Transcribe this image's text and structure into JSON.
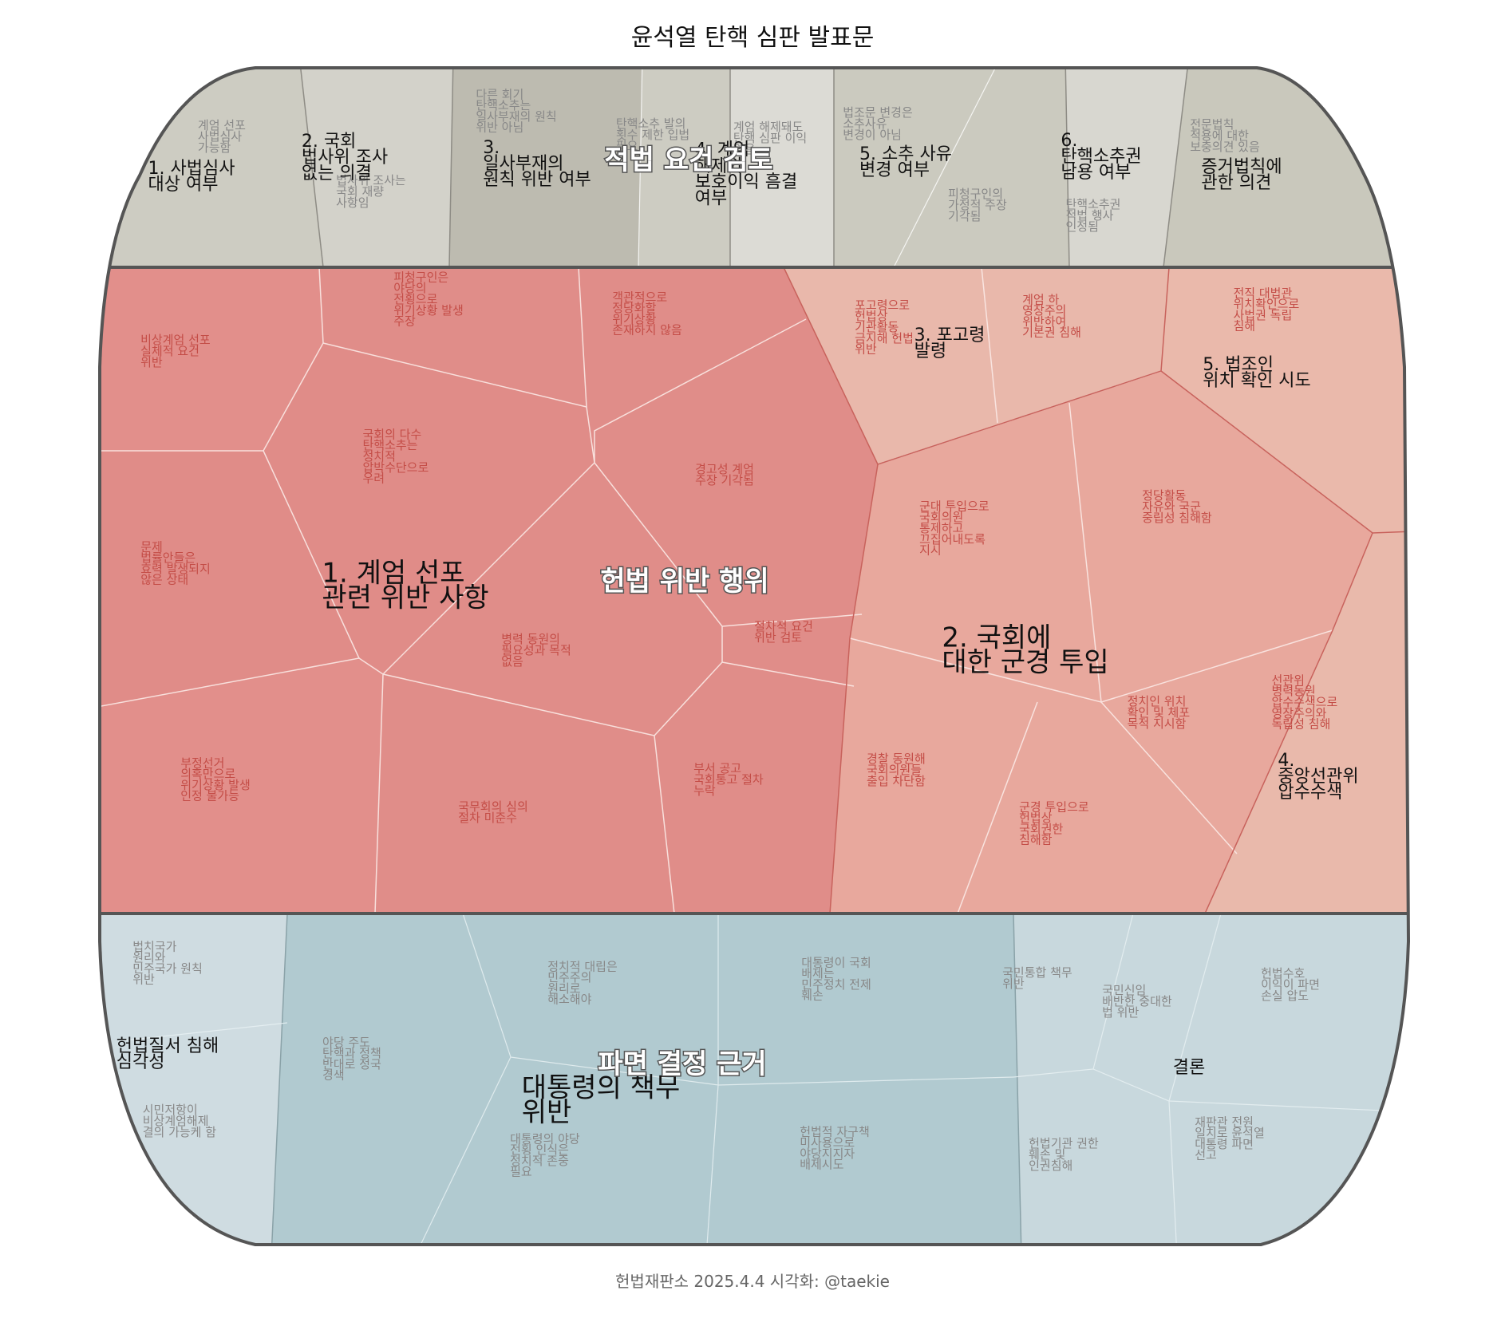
{
  "title": "윤석열 탄핵 심판 발표문",
  "footer": "헌법재판소 2025.4.4 시각화: @taekie",
  "groups": [
    {
      "label": "적법 요건 검토",
      "color": "#cdccc2",
      "cells": [
        {
          "label": "1. 사법심사\n대상 여부",
          "details": [
            "계엄 선포\n사법심사\n가능함"
          ]
        },
        {
          "label": "2. 국회\n법사위 조사\n없는 의결",
          "details": [
            "법사위 조사는\n국회 재량\n사항임"
          ]
        },
        {
          "label": "3.\n일사부재의\n원칙 위반 여부",
          "details": [
            "다른 회기\n탄핵소추는\n일사부재의 원칙\n위반 아님",
            "탄핵소추 발의\n횟수 제한 입법\n필요"
          ]
        },
        {
          "label": "4. 계엄\n해제와\n보호이익 흠결\n여부",
          "details": [
            "계엄 해제돼도\n탄핵 심판 이익\n있음"
          ]
        },
        {
          "label": "5. 소추 사유\n변경 여부",
          "details": [
            "법조문 변경은\n소추사유\n변경이 아님",
            "피청구인의\n가정적 주장\n기각됨"
          ]
        },
        {
          "label": "6.\n탄핵소추권\n남용 여부",
          "details": [
            "탄핵소추권\n적법 행사\n인정됨"
          ]
        },
        {
          "label": "증거법칙에\n관한 의견",
          "details": [
            "전문법칙\n적용에 대한\n보충의견 있음"
          ]
        }
      ]
    },
    {
      "label": "헌법 위반 행위",
      "color": "#e08d89",
      "cells": [
        {
          "label": "1. 계엄 선포\n관련 위반 사항",
          "details": [
            "비상계엄 선포\n실체적 요건\n위반",
            "피청구인은\n야당의\n전횡으로\n위기상황 발생\n주장",
            "객관적으로\n정당화할\n위기상황\n존재하지 않음",
            "국회의 다수\n탄핵소추는\n정치적\n압박수단으로\n우려",
            "경고성 계엄\n주장 기각됨",
            "문제\n법률안들은\n효력 발생되지\n않은 상태",
            "병력 동원의\n필요성과 목적\n없음",
            "절차적 요건\n위반 검토",
            "부정선거\n의혹만으로\n위기상황 발생\n인정 불가능",
            "국무회의 심의\n절차 미준수",
            "부서 공고\n국회통고 절차\n누락"
          ]
        },
        {
          "label": "2. 국회에\n대한 군경 투입",
          "details": [
            "군대 투입으로\n국회의원\n통제하고\n끄집어내도록\n지시",
            "경찰 동원해\n국회의원들\n출입 차단함",
            "군경 투입으로\n헌법상\n국회권한\n침해함"
          ]
        },
        {
          "label": "3. 포고령\n발령",
          "details": [
            "포고령으로\n헌법상\n기관활동\n금지해 헌법\n위반",
            "계엄 하\n영장주의\n위반하여\n기본권 침해",
            "정당활동\n자유와 국군\n중립성 침해함"
          ]
        },
        {
          "label": "4.\n중앙선관위\n압수수색",
          "details": [
            "선관위\n병력동원\n압수수색으로\n영장주의와\n독립성 침해"
          ]
        },
        {
          "label": "5. 법조인\n위치 확인 시도",
          "details": [
            "전직 대법관\n위치확인으로\n사법권 독립\n침해",
            "정치인 위치\n확인 및 체포\n목적 지시함"
          ]
        }
      ]
    },
    {
      "label": "파면 결정 근거",
      "color": "#b7ccd1",
      "cells": [
        {
          "label": "헌법질서 침해\n심각성",
          "details": [
            "법치국가\n원리와\n민주국가 원칙\n위반",
            "시민저항이\n비상계엄해제\n결의 가능케 함"
          ]
        },
        {
          "label": "대통령의 책무\n위반",
          "details": [
            "야당 주도\n탄핵과 정책\n반대로 정국\n경색",
            "정치적 대립은\n민주주의\n원리로\n해소해야",
            "대통령이 국회\n배제는\n민주정치 전제\n훼손",
            "대통령의 야당\n전횡 인식은\n정치적 존중\n필요",
            "헌법적 자구책\n미사용으로\n야당지지자\n배제시도"
          ]
        },
        {
          "label": "결론",
          "details": [
            "국민통합 책무\n위반",
            "국민신임\n배반한 중대한\n법 위반",
            "헌법수호\n이익이 파면\n손실 압도",
            "헌법기관 권한\n훼손 및\n인권침해",
            "재판관 전원\n일치로 윤석열\n대통령 파면\n선고"
          ]
        }
      ]
    }
  ]
}
